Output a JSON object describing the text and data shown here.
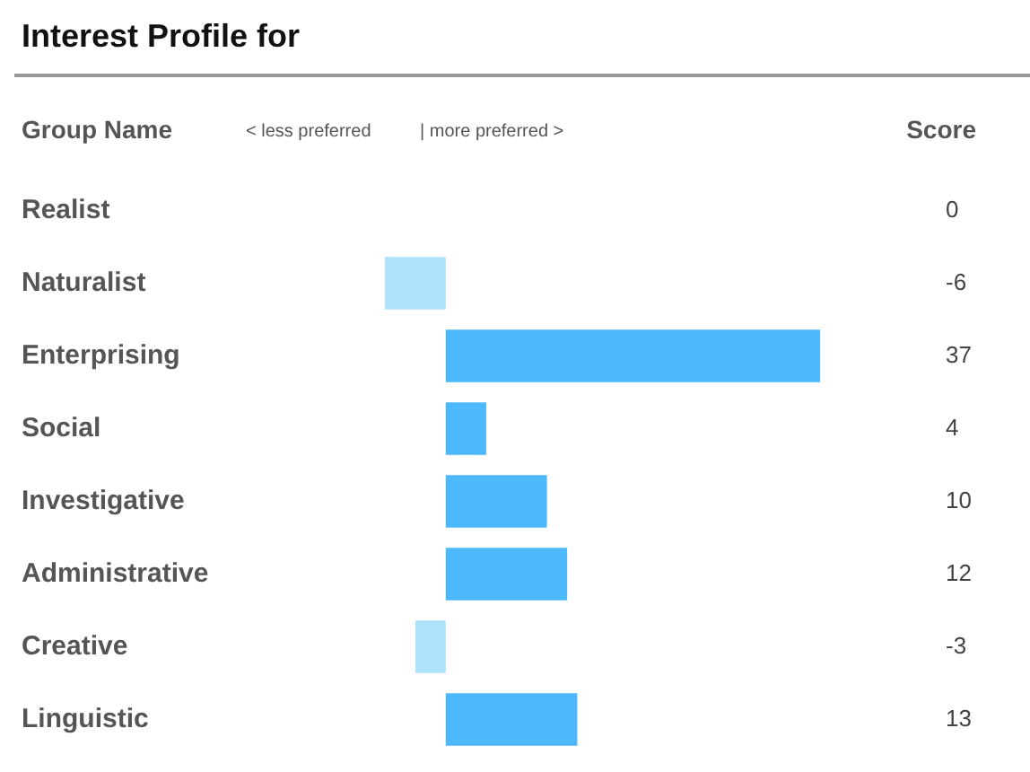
{
  "chart_data": {
    "type": "bar",
    "orientation": "horizontal",
    "title": "Interest Profile for",
    "annotations": [
      "Group Name",
      "< less preferred",
      "| more preferred >",
      "Score"
    ],
    "categories": [
      "Realist",
      "Naturalist",
      "Enterprising",
      "Social",
      "Investigative",
      "Administrative",
      "Creative",
      "Linguistic"
    ],
    "values": [
      0,
      -6,
      37,
      4,
      10,
      12,
      -3,
      13
    ],
    "colors": [
      "#aee3fb",
      "#aee3fb",
      "#4db8fb",
      "#4db8fb",
      "#4db8fb",
      "#4db8fb",
      "#aee3fb",
      "#4db8fb"
    ],
    "data_labels": true,
    "legend": false,
    "tick_labels": "y"
  }
}
